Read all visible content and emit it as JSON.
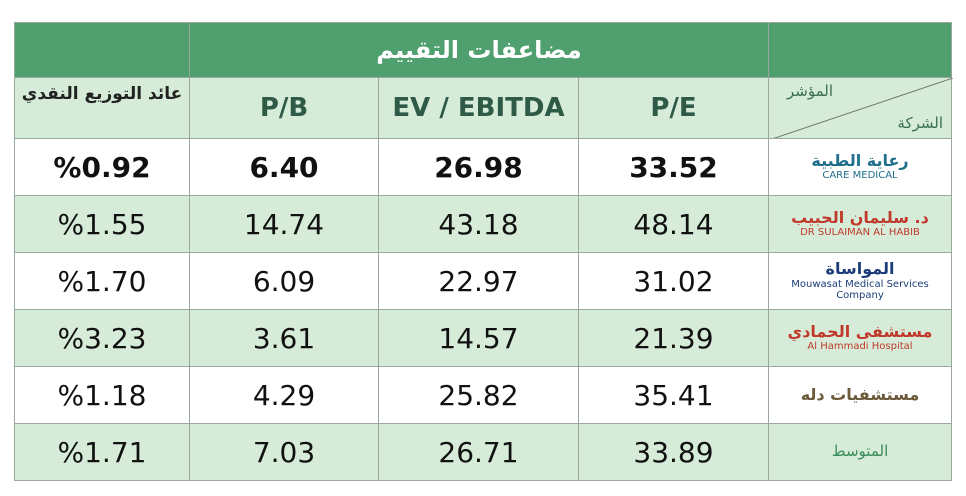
{
  "table": {
    "group_header": "مضاعفات التقييم",
    "corner": {
      "top": "المؤشر",
      "bottom": "الشركة"
    },
    "columns": [
      "عائد التوزيع النقدي",
      "P/B",
      "EV / EBITDA",
      "P/E"
    ],
    "rows": [
      {
        "company": [
          "رعاية الطبية",
          "CARE MEDICAL"
        ],
        "cells": [
          "%0.92",
          "6.40",
          "26.98",
          "33.52"
        ]
      },
      {
        "company": [
          "د. سليمان الحبيب",
          "DR SULAIMAN AL HABIB"
        ],
        "cells": [
          "%1.55",
          "14.74",
          "43.18",
          "48.14"
        ]
      },
      {
        "company": [
          "المواساة",
          "Mouwasat Medical Services Company"
        ],
        "cells": [
          "%1.70",
          "6.09",
          "22.97",
          "31.02"
        ]
      },
      {
        "company": [
          "مستشفى الحمادي",
          "Al Hammadi Hospital"
        ],
        "cells": [
          "%3.23",
          "3.61",
          "14.57",
          "21.39"
        ]
      },
      {
        "company": [
          "مستشفيات دله"
        ],
        "cells": [
          "%1.18",
          "4.29",
          "25.82",
          "35.41"
        ]
      },
      {
        "company": [
          "المتوسط"
        ],
        "cells": [
          "%1.71",
          "7.03",
          "26.71",
          "33.89"
        ]
      }
    ]
  }
}
